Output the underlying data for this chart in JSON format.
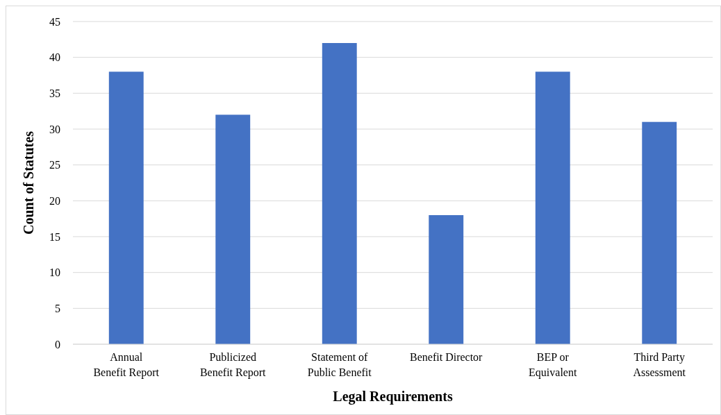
{
  "chart_data": {
    "type": "bar",
    "xlabel": "Legal Requirements",
    "ylabel": "Count of Statutes",
    "categories": [
      "Annual Benefit Report",
      "Publicized Benefit Report",
      "Statement of Public Benefit",
      "Benefit Director",
      "BEP or Equivalent",
      "Third Party Assessment"
    ],
    "values": [
      38,
      32,
      42,
      18,
      38,
      31
    ],
    "color": "#4472c4",
    "ylim": [
      0,
      45
    ],
    "yticks": [
      0,
      5,
      10,
      15,
      20,
      25,
      30,
      35,
      40,
      45
    ],
    "grid": "y"
  }
}
